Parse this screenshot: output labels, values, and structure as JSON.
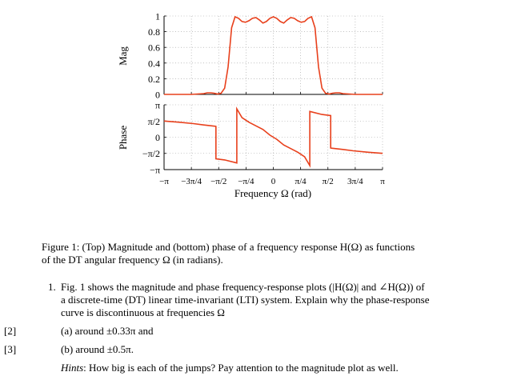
{
  "figure": {
    "top_plot": {
      "ylabel": "Mag",
      "ytick_labels": [
        "0",
        "0.2",
        "0.4",
        "0.6",
        "0.8",
        "1"
      ]
    },
    "bottom_plot": {
      "ylabel": "Phase",
      "ytick_labels": [
        "−π",
        "−π/2",
        "0",
        "π/2",
        "π"
      ]
    },
    "xtick_labels": [
      "−π",
      "−3π/4",
      "−π/2",
      "−π/4",
      "0",
      "π/4",
      "π/2",
      "3π/4",
      "π"
    ],
    "xlabel": "Frequency Ω (rad)",
    "colors": {
      "curve": "#e8401c",
      "grid": "#9a9a9a",
      "axis": "#000000"
    }
  },
  "chart_data": [
    {
      "type": "line",
      "ylabel": "Mag",
      "xlim": [
        -3.1416,
        3.1416
      ],
      "ylim": [
        0,
        1
      ],
      "grid": true,
      "series": [
        {
          "x": [
            -3.1416,
            -2.36,
            -2.0,
            -1.9,
            -1.8,
            -1.7,
            -1.6,
            -1.5,
            -1.4,
            -1.3,
            -1.25,
            -1.2,
            -1.1,
            -1.0,
            -0.9,
            -0.8,
            -0.7,
            -0.6,
            -0.5,
            -0.4,
            -0.3,
            -0.2,
            -0.1,
            0,
            0.1,
            0.2,
            0.3,
            0.4,
            0.5,
            0.6,
            0.7,
            0.8,
            0.9,
            1.0,
            1.1,
            1.2,
            1.25,
            1.3,
            1.4,
            1.5,
            1.6,
            1.7,
            1.8,
            1.9,
            2.0,
            2.36,
            3.1416
          ],
          "y": [
            0.0,
            0.0,
            0.01,
            0.02,
            0.02,
            0.015,
            0.005,
            0.015,
            0.08,
            0.35,
            0.6,
            0.85,
            0.99,
            0.97,
            0.93,
            0.92,
            0.94,
            0.97,
            0.98,
            0.95,
            0.91,
            0.93,
            0.97,
            0.99,
            0.97,
            0.93,
            0.91,
            0.95,
            0.98,
            0.97,
            0.94,
            0.92,
            0.93,
            0.97,
            0.99,
            0.85,
            0.6,
            0.35,
            0.08,
            0.015,
            0.005,
            0.015,
            0.02,
            0.02,
            0.01,
            0.0,
            0.0
          ]
        }
      ]
    },
    {
      "type": "line",
      "ylabel": "Phase",
      "xlim": [
        -3.1416,
        3.1416
      ],
      "ylim": [
        -3.1416,
        3.1416
      ],
      "grid": true,
      "series": [
        {
          "x": [
            -3.1416,
            -2.7,
            -2.3,
            -2.0,
            -1.67,
            -1.65,
            -1.65,
            -1.4,
            -1.05,
            -1.05,
            -0.9,
            -0.7,
            -0.5,
            -0.3,
            -0.1,
            0.1,
            0.3,
            0.5,
            0.7,
            0.9,
            1.05,
            1.05,
            1.4,
            1.65,
            1.65,
            1.67,
            2.0,
            2.3,
            2.7,
            3.1416
          ],
          "y": [
            1.57,
            1.45,
            1.32,
            1.19,
            1.06,
            1.05,
            -2.1,
            -2.2,
            -2.5,
            2.75,
            1.9,
            1.45,
            1.1,
            0.75,
            0.2,
            -0.2,
            -0.75,
            -1.1,
            -1.45,
            -1.9,
            -2.75,
            2.5,
            2.2,
            2.1,
            -1.05,
            -1.06,
            -1.19,
            -1.32,
            -1.45,
            -1.57
          ]
        }
      ]
    }
  ],
  "caption": {
    "line1": "Figure 1: (Top) Magnitude and (bottom) phase of a frequency response H(Ω) as functions",
    "line2": "of the DT angular frequency Ω (in radians)."
  },
  "question": {
    "number": "1.",
    "line1": "Fig. 1 shows the magnitude and phase frequency-response plots (|H(Ω)| and ∠H(Ω)) of",
    "line2": "a discrete-time (DT) linear time-invariant (LTI) system. Explain why the phase-response",
    "line3": "curve is discontinuous at frequencies Ω",
    "parts": [
      {
        "mark": "[2]",
        "text": "(a) around ±0.33π and"
      },
      {
        "mark": "[3]",
        "text": "(b) around ±0.5π."
      }
    ],
    "hint_label": "Hints",
    "hint_text": ": How big is each of the jumps? Pay attention to the magnitude plot as well."
  }
}
